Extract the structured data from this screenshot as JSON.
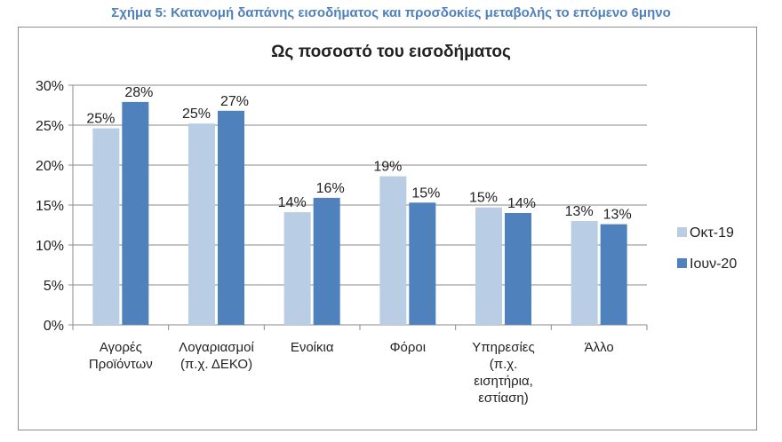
{
  "caption": "Σχήμα 5: Κατανομή δαπάνης εισοδήματος και προσδοκίες μεταβολής το επόμενο 6μηνο",
  "chart_data": {
    "type": "bar",
    "title": "Ως ποσοστό του εισοδήματος",
    "categories": [
      [
        "Αγορές",
        "Προϊόντων"
      ],
      [
        "Λογαριασμοί",
        "(π.χ. ΔΕΚΟ)"
      ],
      [
        "Ενοίκια"
      ],
      [
        "Φόροι"
      ],
      [
        "Υπηρεσίες",
        "(π.χ.",
        "εισητήρια,",
        "εστίαση)"
      ],
      [
        "Άλλο"
      ]
    ],
    "series": [
      {
        "name": "Οκτ-19",
        "color": "#b9cde5",
        "values": [
          24.6,
          25.2,
          14.1,
          18.6,
          14.7,
          13.0
        ],
        "labels": [
          "25%",
          "25%",
          "14%",
          "19%",
          "15%",
          "13%"
        ]
      },
      {
        "name": "Ιουν-20",
        "color": "#4f81bd",
        "values": [
          27.9,
          26.8,
          15.9,
          15.3,
          14.0,
          12.6
        ],
        "labels": [
          "28%",
          "27%",
          "16%",
          "15%",
          "14%",
          "13%"
        ]
      }
    ],
    "ylim": [
      0,
      30
    ],
    "yticks": [
      "0%",
      "5%",
      "10%",
      "15%",
      "20%",
      "25%",
      "30%"
    ],
    "grid": true,
    "legend": "right"
  }
}
